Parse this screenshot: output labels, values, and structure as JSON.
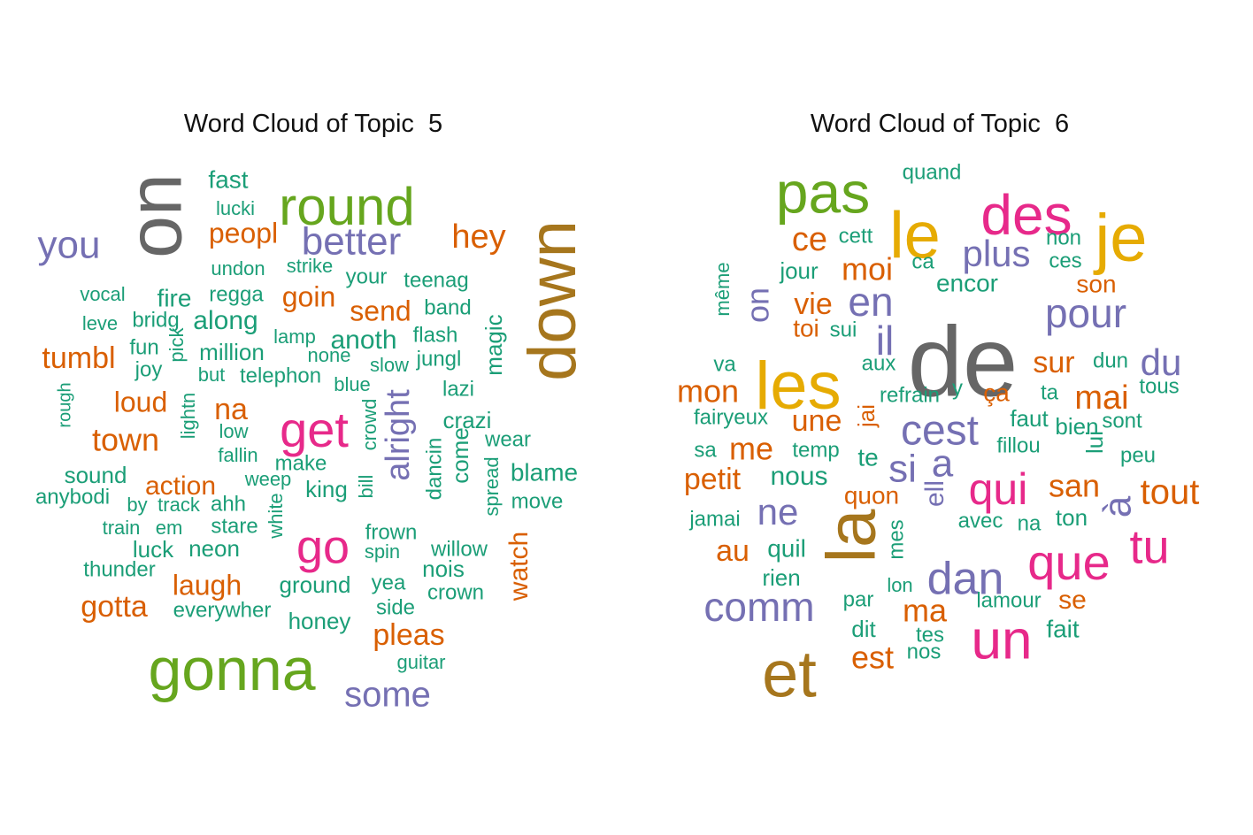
{
  "chart_data": [
    {
      "type": "wordcloud",
      "title": "Word Cloud of Topic  5",
      "colors": {
        "green": "#1b9e77",
        "orange": "#d95f02",
        "purple": "#7570b3",
        "pink": "#e7298a",
        "lime": "#66a61e",
        "gold": "#e6ab02",
        "brown": "#a6761d",
        "gray": "#666666"
      },
      "words": [
        {
          "text": "on",
          "color": "gray"
        },
        {
          "text": "down",
          "color": "brown"
        },
        {
          "text": "round",
          "color": "lime"
        },
        {
          "text": "gonna",
          "color": "lime"
        },
        {
          "text": "get",
          "color": "pink"
        },
        {
          "text": "go",
          "color": "pink"
        },
        {
          "text": "better",
          "color": "purple"
        },
        {
          "text": "you",
          "color": "purple"
        },
        {
          "text": "alright",
          "color": "purple"
        },
        {
          "text": "some",
          "color": "purple"
        },
        {
          "text": "hey",
          "color": "orange"
        },
        {
          "text": "na",
          "color": "orange"
        },
        {
          "text": "town",
          "color": "orange"
        },
        {
          "text": "tumbl",
          "color": "orange"
        },
        {
          "text": "peopl",
          "color": "orange"
        },
        {
          "text": "send",
          "color": "orange"
        },
        {
          "text": "goin",
          "color": "orange"
        },
        {
          "text": "loud",
          "color": "orange"
        },
        {
          "text": "action",
          "color": "orange"
        },
        {
          "text": "laugh",
          "color": "orange"
        },
        {
          "text": "gotta",
          "color": "orange"
        },
        {
          "text": "pleas",
          "color": "orange"
        },
        {
          "text": "watch",
          "color": "orange"
        },
        {
          "text": "fast",
          "color": "green"
        },
        {
          "text": "lucki",
          "color": "green"
        },
        {
          "text": "undon",
          "color": "green"
        },
        {
          "text": "strike",
          "color": "green"
        },
        {
          "text": "your",
          "color": "green"
        },
        {
          "text": "teenag",
          "color": "green"
        },
        {
          "text": "vocal",
          "color": "green"
        },
        {
          "text": "fire",
          "color": "green"
        },
        {
          "text": "regga",
          "color": "green"
        },
        {
          "text": "band",
          "color": "green"
        },
        {
          "text": "leve",
          "color": "green"
        },
        {
          "text": "bridg",
          "color": "green"
        },
        {
          "text": "along",
          "color": "green"
        },
        {
          "text": "lamp",
          "color": "green"
        },
        {
          "text": "anoth",
          "color": "green"
        },
        {
          "text": "flash",
          "color": "green"
        },
        {
          "text": "fun",
          "color": "green"
        },
        {
          "text": "pick",
          "color": "green"
        },
        {
          "text": "million",
          "color": "green"
        },
        {
          "text": "none",
          "color": "green"
        },
        {
          "text": "jungl",
          "color": "green"
        },
        {
          "text": "magic",
          "color": "green"
        },
        {
          "text": "joy",
          "color": "green"
        },
        {
          "text": "but",
          "color": "green"
        },
        {
          "text": "telephon",
          "color": "green"
        },
        {
          "text": "slow",
          "color": "green"
        },
        {
          "text": "blue",
          "color": "green"
        },
        {
          "text": "lazi",
          "color": "green"
        },
        {
          "text": "rough",
          "color": "green"
        },
        {
          "text": "lightn",
          "color": "green"
        },
        {
          "text": "low",
          "color": "green"
        },
        {
          "text": "crowd",
          "color": "green"
        },
        {
          "text": "crazi",
          "color": "green"
        },
        {
          "text": "fallin",
          "color": "green"
        },
        {
          "text": "dancin",
          "color": "green"
        },
        {
          "text": "come",
          "color": "green"
        },
        {
          "text": "wear",
          "color": "green"
        },
        {
          "text": "make",
          "color": "green"
        },
        {
          "text": "sound",
          "color": "green"
        },
        {
          "text": "weep",
          "color": "green"
        },
        {
          "text": "king",
          "color": "green"
        },
        {
          "text": "bill",
          "color": "green"
        },
        {
          "text": "blame",
          "color": "green"
        },
        {
          "text": "anybodi",
          "color": "green"
        },
        {
          "text": "by",
          "color": "green"
        },
        {
          "text": "track",
          "color": "green"
        },
        {
          "text": "ahh",
          "color": "green"
        },
        {
          "text": "spread",
          "color": "green"
        },
        {
          "text": "move",
          "color": "green"
        },
        {
          "text": "train",
          "color": "green"
        },
        {
          "text": "em",
          "color": "green"
        },
        {
          "text": "stare",
          "color": "green"
        },
        {
          "text": "white",
          "color": "green"
        },
        {
          "text": "frown",
          "color": "green"
        },
        {
          "text": "luck",
          "color": "green"
        },
        {
          "text": "neon",
          "color": "green"
        },
        {
          "text": "spin",
          "color": "green"
        },
        {
          "text": "willow",
          "color": "green"
        },
        {
          "text": "thunder",
          "color": "green"
        },
        {
          "text": "nois",
          "color": "green"
        },
        {
          "text": "ground",
          "color": "green"
        },
        {
          "text": "yea",
          "color": "green"
        },
        {
          "text": "crown",
          "color": "green"
        },
        {
          "text": "everywher",
          "color": "green"
        },
        {
          "text": "side",
          "color": "green"
        },
        {
          "text": "honey",
          "color": "green"
        },
        {
          "text": "guitar",
          "color": "green"
        }
      ]
    },
    {
      "type": "wordcloud",
      "title": "Word Cloud of Topic  6",
      "colors": {
        "green": "#1b9e77",
        "orange": "#d95f02",
        "purple": "#7570b3",
        "pink": "#e7298a",
        "lime": "#66a61e",
        "gold": "#e6ab02",
        "brown": "#a6761d",
        "gray": "#666666"
      },
      "words": [
        {
          "text": "de",
          "color": "gray"
        },
        {
          "text": "les",
          "color": "gold"
        },
        {
          "text": "la",
          "color": "brown"
        },
        {
          "text": "et",
          "color": "brown"
        },
        {
          "text": "je",
          "color": "gold"
        },
        {
          "text": "le",
          "color": "gold"
        },
        {
          "text": "pas",
          "color": "lime"
        },
        {
          "text": "des",
          "color": "pink"
        },
        {
          "text": "un",
          "color": "pink"
        },
        {
          "text": "que",
          "color": "pink"
        },
        {
          "text": "qui",
          "color": "pink"
        },
        {
          "text": "tu",
          "color": "pink"
        },
        {
          "text": "pour",
          "color": "purple"
        },
        {
          "text": "plus",
          "color": "purple"
        },
        {
          "text": "en",
          "color": "purple"
        },
        {
          "text": "il",
          "color": "purple"
        },
        {
          "text": "cest",
          "color": "purple"
        },
        {
          "text": "dan",
          "color": "purple"
        },
        {
          "text": "comm",
          "color": "purple"
        },
        {
          "text": "du",
          "color": "purple"
        },
        {
          "text": "si",
          "color": "purple"
        },
        {
          "text": "a",
          "color": "purple"
        },
        {
          "text": "ne",
          "color": "purple"
        },
        {
          "text": "à",
          "color": "purple"
        },
        {
          "text": "on",
          "color": "purple"
        },
        {
          "text": "ell",
          "color": "purple"
        },
        {
          "text": "moi",
          "color": "orange"
        },
        {
          "text": "ce",
          "color": "orange"
        },
        {
          "text": "mon",
          "color": "orange"
        },
        {
          "text": "vie",
          "color": "orange"
        },
        {
          "text": "mai",
          "color": "orange"
        },
        {
          "text": "tout",
          "color": "orange"
        },
        {
          "text": "une",
          "color": "orange"
        },
        {
          "text": "me",
          "color": "orange"
        },
        {
          "text": "petit",
          "color": "orange"
        },
        {
          "text": "san",
          "color": "orange"
        },
        {
          "text": "quon",
          "color": "orange"
        },
        {
          "text": "au",
          "color": "orange"
        },
        {
          "text": "ma",
          "color": "orange"
        },
        {
          "text": "est",
          "color": "orange"
        },
        {
          "text": "sur",
          "color": "orange"
        },
        {
          "text": "son",
          "color": "orange"
        },
        {
          "text": "se",
          "color": "orange"
        },
        {
          "text": "ça",
          "color": "orange"
        },
        {
          "text": "toi",
          "color": "orange"
        },
        {
          "text": "jai",
          "color": "orange"
        },
        {
          "text": "quand",
          "color": "green"
        },
        {
          "text": "cett",
          "color": "green"
        },
        {
          "text": "ca",
          "color": "green"
        },
        {
          "text": "non",
          "color": "green"
        },
        {
          "text": "ces",
          "color": "green"
        },
        {
          "text": "jour",
          "color": "green"
        },
        {
          "text": "encor",
          "color": "green"
        },
        {
          "text": "même",
          "color": "green"
        },
        {
          "text": "sui",
          "color": "green"
        },
        {
          "text": "va",
          "color": "green"
        },
        {
          "text": "aux",
          "color": "green"
        },
        {
          "text": "dun",
          "color": "green"
        },
        {
          "text": "refrain",
          "color": "green"
        },
        {
          "text": "y",
          "color": "green"
        },
        {
          "text": "ta",
          "color": "green"
        },
        {
          "text": "tous",
          "color": "green"
        },
        {
          "text": "fairyeux",
          "color": "green"
        },
        {
          "text": "faut",
          "color": "green"
        },
        {
          "text": "bien",
          "color": "green"
        },
        {
          "text": "sont",
          "color": "green"
        },
        {
          "text": "sa",
          "color": "green"
        },
        {
          "text": "temp",
          "color": "green"
        },
        {
          "text": "te",
          "color": "green"
        },
        {
          "text": "fillou",
          "color": "green"
        },
        {
          "text": "lui",
          "color": "green"
        },
        {
          "text": "peu",
          "color": "green"
        },
        {
          "text": "nous",
          "color": "green"
        },
        {
          "text": "jamai",
          "color": "green"
        },
        {
          "text": "avec",
          "color": "green"
        },
        {
          "text": "na",
          "color": "green"
        },
        {
          "text": "ton",
          "color": "green"
        },
        {
          "text": "quil",
          "color": "green"
        },
        {
          "text": "mes",
          "color": "green"
        },
        {
          "text": "rien",
          "color": "green"
        },
        {
          "text": "lon",
          "color": "green"
        },
        {
          "text": "lamour",
          "color": "green"
        },
        {
          "text": "par",
          "color": "green"
        },
        {
          "text": "dit",
          "color": "green"
        },
        {
          "text": "tes",
          "color": "green"
        },
        {
          "text": "nos",
          "color": "green"
        },
        {
          "text": "fait",
          "color": "green"
        }
      ]
    }
  ]
}
